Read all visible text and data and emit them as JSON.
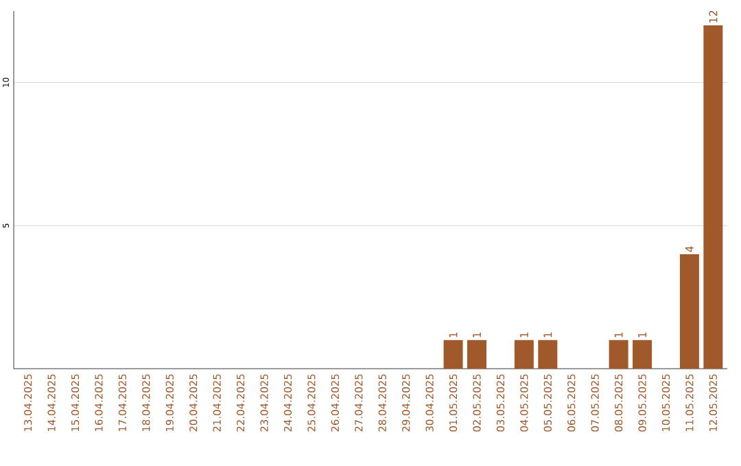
{
  "chart_data": {
    "type": "bar",
    "categories": [
      "13.04.2025",
      "14.04.2025",
      "15.04.2025",
      "16.04.2025",
      "17.04.2025",
      "18.04.2025",
      "19.04.2025",
      "20.04.2025",
      "21.04.2025",
      "22.04.2025",
      "23.04.2025",
      "24.04.2025",
      "25.04.2025",
      "26.04.2025",
      "27.04.2025",
      "28.04.2025",
      "29.04.2025",
      "30.04.2025",
      "01.05.2025",
      "02.05.2025",
      "03.05.2025",
      "04.05.2025",
      "05.05.2025",
      "06.05.2025",
      "07.05.2025",
      "08.05.2025",
      "09.05.2025",
      "10.05.2025",
      "11.05.2025",
      "12.05.2025"
    ],
    "values": [
      0,
      0,
      0,
      0,
      0,
      0,
      0,
      0,
      0,
      0,
      0,
      0,
      0,
      0,
      0,
      0,
      0,
      0,
      1,
      1,
      0,
      1,
      1,
      0,
      0,
      1,
      1,
      0,
      4,
      12
    ],
    "value_labels": [
      null,
      null,
      null,
      null,
      null,
      null,
      null,
      null,
      null,
      null,
      null,
      null,
      null,
      null,
      null,
      null,
      null,
      null,
      "1",
      "1",
      null,
      "1",
      "1",
      null,
      null,
      "1",
      "1",
      null,
      "4",
      "12"
    ],
    "color": "#a0592a",
    "ylim": [
      0,
      12.5
    ],
    "yticks": [
      5,
      10
    ],
    "grid": "y"
  }
}
